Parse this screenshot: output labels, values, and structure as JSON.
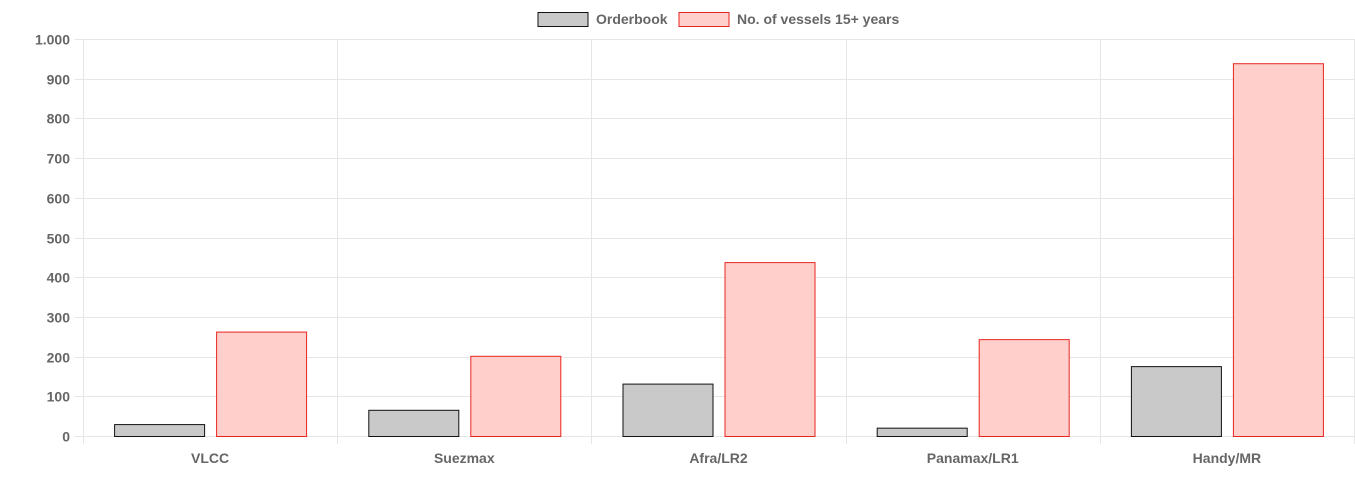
{
  "chart_data": {
    "type": "bar",
    "categories": [
      "VLCC",
      "Suezmax",
      "Afra/LR2",
      "Panamax/LR1",
      "Handy/MR"
    ],
    "series": [
      {
        "name": "Orderbook",
        "values": [
          30,
          66,
          132,
          21,
          176
        ],
        "fill": "#c9c9c9",
        "stroke": "#111111"
      },
      {
        "name": "No. of vessels 15+ years",
        "values": [
          263,
          202,
          438,
          244,
          939
        ],
        "fill": "#ffcfcc",
        "stroke": "#e8251f"
      }
    ],
    "ylim": [
      0,
      1000
    ],
    "yticks": [
      0,
      100,
      200,
      300,
      400,
      500,
      600,
      700,
      800,
      900,
      1000
    ],
    "ytick_labels": [
      "0",
      "100",
      "200",
      "300",
      "400",
      "500",
      "600",
      "700",
      "800",
      "900",
      "1.000"
    ],
    "grid": true,
    "legend_position": "top-center"
  },
  "colors": {
    "grid": "#e6e6e6",
    "axis_text": "#666666"
  }
}
